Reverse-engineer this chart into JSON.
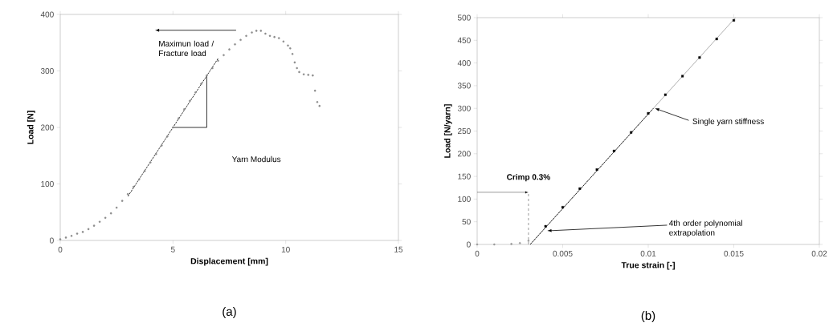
{
  "chart_data": [
    {
      "type": "scatter",
      "xlabel": "Displacement [mm]",
      "ylabel": "Load [N]",
      "xlim": [
        0,
        15
      ],
      "ylim": [
        0,
        400
      ],
      "xticks": [
        0,
        5,
        10,
        15
      ],
      "yticks": [
        0,
        100,
        200,
        300,
        400
      ],
      "series": [
        {
          "color": "#8c8c8c",
          "marker": "circle",
          "x": [
            0,
            0.25,
            0.5,
            0.75,
            1,
            1.25,
            1.5,
            1.75,
            2,
            2.25,
            2.5,
            2.75,
            3,
            3.25,
            3.5,
            3.75,
            4,
            4.25,
            4.5,
            4.75,
            5,
            5.25,
            5.5,
            5.75,
            6,
            6.25,
            6.5,
            6.75,
            7,
            7.25,
            7.5,
            7.75,
            8,
            8.25,
            8.5,
            8.7,
            8.9,
            9.1,
            9.3,
            9.5,
            9.7,
            9.9,
            10.1,
            10.2,
            10.3,
            10.4,
            10.5,
            10.6,
            10.8,
            11,
            11.2,
            11.3,
            11.4,
            11.5
          ],
          "values": [
            2,
            5,
            8,
            12,
            15,
            20,
            26,
            33,
            40,
            48,
            58,
            70,
            82,
            95,
            108,
            123,
            138,
            153,
            168,
            184,
            200,
            216,
            232,
            247,
            262,
            277,
            292,
            305,
            318,
            328,
            338,
            347,
            355,
            362,
            368,
            371,
            371,
            366,
            362,
            360,
            358,
            352,
            345,
            340,
            330,
            315,
            305,
            298,
            294,
            293,
            292,
            265,
            245,
            238
          ]
        },
        {
          "type": "line",
          "color": "#000000",
          "line_style": "dashed",
          "x": [
            3,
            7
          ],
          "values": [
            78,
            322
          ]
        },
        {
          "type": "line",
          "color": "#000000",
          "line_style": "solid",
          "x": [
            5,
            6.5,
            6.5
          ],
          "values": [
            200,
            200,
            292
          ]
        }
      ],
      "annotations": [
        "Maximun load / Fracture load",
        "Yarn Modulus",
        "(a)"
      ]
    },
    {
      "type": "scatter",
      "xlabel": "True strain [-]",
      "ylabel": "Load [N/yarn]",
      "xlim": [
        0,
        0.02
      ],
      "ylim": [
        0,
        500
      ],
      "xticks": [
        0,
        0.005,
        0.01,
        0.015,
        0.02
      ],
      "yticks": [
        0,
        50,
        100,
        150,
        200,
        250,
        300,
        350,
        400,
        450,
        500
      ],
      "series": [
        {
          "type": "line",
          "color": "#9a9a9a",
          "line_style": "solid",
          "x": [
            0.0031,
            0.0151
          ],
          "values": [
            0,
            500
          ]
        },
        {
          "type": "line",
          "color": "#000000",
          "line_style": "dashed",
          "x": [
            0.0031,
            0.0103
          ],
          "values": [
            0,
            300
          ]
        },
        {
          "color": "#9a9a9a",
          "marker": "circle",
          "x": [
            0,
            0.001,
            0.002,
            0.0025,
            0.003
          ],
          "values": [
            0,
            0,
            1,
            3,
            8
          ]
        },
        {
          "color": "#000000",
          "marker": "square",
          "x": [
            0.004,
            0.005,
            0.006,
            0.007,
            0.008,
            0.009,
            0.01,
            0.011,
            0.012,
            0.013,
            0.014,
            0.015
          ],
          "values": [
            40,
            82,
            123,
            165,
            206,
            247,
            289,
            330,
            371,
            412,
            453,
            494
          ]
        }
      ],
      "ref_lines": [
        {
          "axis": "x",
          "value": 0.003,
          "label": "Crimp 0.3%",
          "line_style": "dashed",
          "color": "#808080"
        }
      ],
      "annotations": [
        {
          "text": "Single yarn stiffness",
          "x": 0.0103,
          "y": 300
        },
        "4th order polynomial extrapolation",
        "(b)"
      ]
    }
  ]
}
